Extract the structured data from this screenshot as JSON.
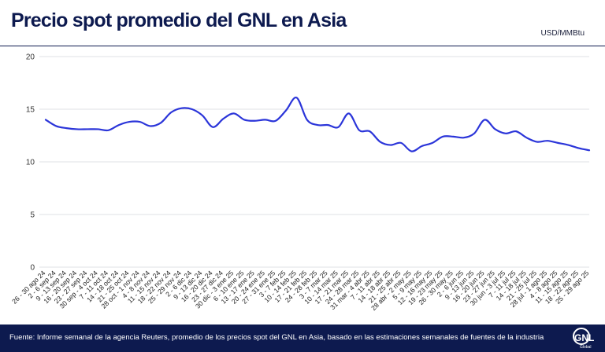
{
  "header": {
    "title": "Precio spot promedio del GNL en Asia",
    "unit": "USD/MMBtu"
  },
  "footer": {
    "source": "Fuente: Informe semanal de la agencia Reuters, promedio de los precios spot del GNL en Asia, basado en las estimaciones semanales de fuentes de la industria",
    "logo_text": "GNL",
    "logo_subtext": "Global"
  },
  "colors": {
    "line": "#2b35d9",
    "grid": "#dfe1e6",
    "navy": "#0d1a4f"
  },
  "chart_data": {
    "type": "line",
    "title": "Precio spot promedio del GNL en Asia",
    "ylabel": "USD/MMBtu",
    "xlabel": "",
    "ylim": [
      0,
      20
    ],
    "yticks": [
      0,
      5,
      10,
      15,
      20
    ],
    "grid": "horizontal",
    "legend": "none",
    "categories": [
      "26 - 30 ago 24",
      "2 - 6 sep 24",
      "9 - 13 sep 24",
      "16 - 20 sep 24",
      "23 - 27 sep 24",
      "30 sep - 4 oct 24",
      "7 - 11 oct 24",
      "14 - 18 oct 24",
      "21 - 25 oct 24",
      "28 oct - 1 nov 24",
      "4 - 8 nov 24",
      "11 - 15 nov 24",
      "18 - 22 nov 24",
      "25 - 29 nov 24",
      "2 - 6 dic 24",
      "9 - 13 dic 24",
      "16 - 20 dic 24",
      "23 - 27 dic 24",
      "30 dic - 3 ene 25",
      "6 - 10 ene 25",
      "13 - 17 ene 25",
      "20 - 24 ene 25",
      "27 - 31 ene 25",
      "3 - 7 feb 25",
      "10 - 14 feb 25",
      "17 - 21 feb 25",
      "24 - 28 feb 25",
      "3 - 7 mar 25",
      "10 - 14 mar 25",
      "17 - 21 mar 25",
      "24 - 28 mar 25",
      "31 mar - 4 abr 25",
      "7 - 11 abr 25",
      "14 - 18 abr 25",
      "21 - 25 abr 25",
      "28 abr - 2 may 25",
      "5 - 9 may 25",
      "12 - 16 may 25",
      "19 - 23 may 25",
      "26 - 30 may 25",
      "2 - 6 jun 25",
      "9 - 13 jun 25",
      "16 - 20 jun 25",
      "23 - 27 jun 25",
      "30 jun - 3 jul 25",
      "7 - 11 jul 25",
      "14 - 18 jul 25",
      "21 - 25 jul 25",
      "28 jul - 1 ago 25",
      "4 - 8 ago 25",
      "11 - 15 ago 25",
      "18 - 22 ago 25",
      "25 - 29 ago 25"
    ],
    "series": [
      {
        "values": [
          14.0,
          13.4,
          13.2,
          13.1,
          13.1,
          13.1,
          13.0,
          13.5,
          13.8,
          13.8,
          13.4,
          13.7,
          14.7,
          15.1,
          15.0,
          14.4,
          13.3,
          14.1,
          14.6,
          14.0,
          13.9,
          14.0,
          13.9,
          14.9,
          16.1,
          14.0,
          13.5,
          13.5,
          13.3,
          14.6,
          13.0,
          12.9,
          11.9,
          11.6,
          11.8,
          11.0,
          11.5,
          11.8,
          12.4,
          12.4,
          12.3,
          12.7,
          14.0,
          13.1,
          12.7,
          12.9,
          12.3,
          11.9,
          12.0,
          11.8,
          11.6,
          11.3,
          11.1
        ]
      }
    ]
  }
}
